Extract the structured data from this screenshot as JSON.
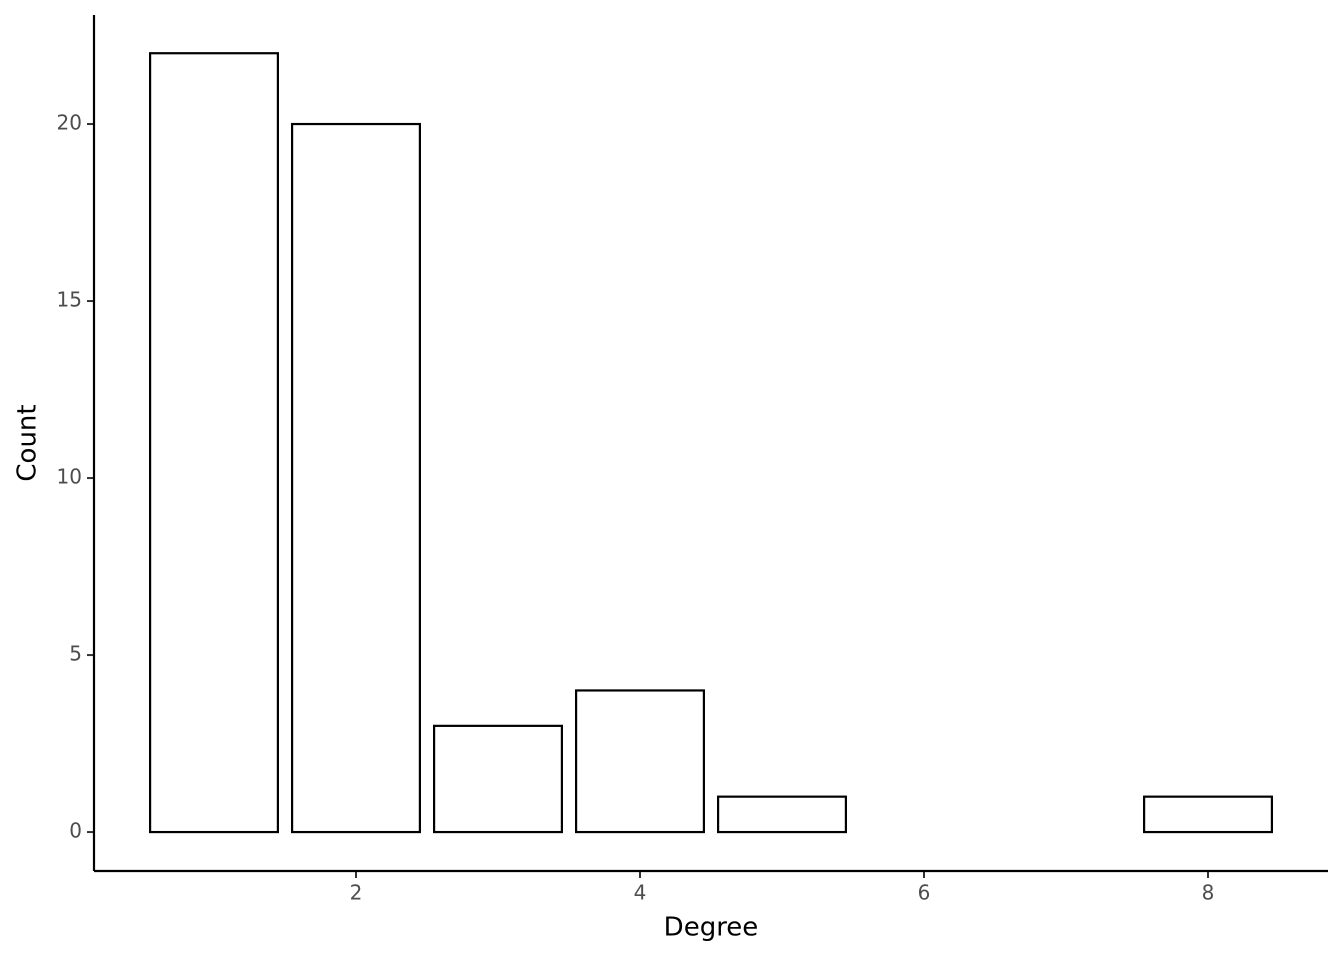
{
  "chart_data": {
    "type": "bar",
    "x_label": "Degree",
    "y_label": "Count",
    "x": [
      1,
      2,
      3,
      4,
      5,
      8
    ],
    "values": [
      22,
      20,
      3,
      4,
      1,
      1
    ],
    "color": "#ffffff",
    "edge_color": "#000000",
    "xlim": [
      0.155,
      8.845
    ],
    "xticks": [
      2,
      4,
      6,
      8
    ],
    "ylim": [
      -1.1,
      23.08
    ],
    "yticks": [
      0,
      5,
      10,
      15,
      20
    ],
    "grid": false
  }
}
